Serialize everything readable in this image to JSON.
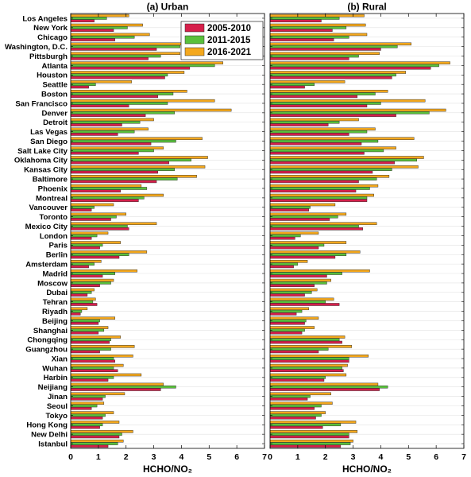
{
  "chart_data": {
    "type": "bar",
    "orientation": "horizontal",
    "categories": [
      "Los Angeles",
      "New York",
      "Chicago",
      "Washington, D.C.",
      "Pittsburgh",
      "Atlanta",
      "Houston",
      "Seattle",
      "Boston",
      "San Francisco",
      "Denver",
      "Detroit",
      "Las Vegas",
      "San Diego",
      "Salt Lake City",
      "Oklahoma City",
      "Kansas City",
      "Baltimore",
      "Phoenix",
      "Montreal",
      "Vancouver",
      "Toronto",
      "Mexico City",
      "London",
      "Paris",
      "Berlin",
      "Amsterdam",
      "Madrid",
      "Moscow",
      "Dubai",
      "Tehran",
      "Riyadh",
      "Beijing",
      "Shanghai",
      "Chongqing",
      "Guangzhou",
      "Xian",
      "Wuhan",
      "Harbin",
      "Neijiang",
      "Jinan",
      "Seoul",
      "Tokyo",
      "Hong Kong",
      "New Delhi",
      "Istanbul"
    ],
    "series": [
      {
        "name": "2005-2010",
        "color": "#d61f4b"
      },
      {
        "name": "2011-2015",
        "color": "#59c03c"
      },
      {
        "name": "2016-2021",
        "color": "#f4a81d"
      }
    ],
    "xlabel": "HCHO/NO₂",
    "xlim": [
      0,
      7
    ],
    "xticks": [
      0,
      1,
      2,
      3,
      4,
      5,
      6,
      7
    ],
    "grid": true,
    "legend_position": "top-right",
    "panels": [
      {
        "title": "(a) Urban",
        "values": [
          [
            0.85,
            1.55,
            1.6,
            3.1,
            2.8,
            4.3,
            3.4,
            0.65,
            3.15,
            2.1,
            2.7,
            1.85,
            1.7,
            2.9,
            2.45,
            3.55,
            3.15,
            3.1,
            1.8,
            2.45,
            0.75,
            1.45,
            2.1,
            0.75,
            1.05,
            1.75,
            0.65,
            1.15,
            1.05,
            0.6,
            0.95,
            0.35,
            1.0,
            1.0,
            1.4,
            1.05,
            1.6,
            1.7,
            1.35,
            3.25,
            1.15,
            0.75,
            1.15,
            1.05,
            1.75,
            1.35
          ],
          [
            1.3,
            2.05,
            2.3,
            3.95,
            3.25,
            5.2,
            3.5,
            0.9,
            3.7,
            3.5,
            3.75,
            2.5,
            2.3,
            3.8,
            3.0,
            4.35,
            3.75,
            3.85,
            2.75,
            2.65,
            0.85,
            1.65,
            2.05,
            0.95,
            1.15,
            2.1,
            0.85,
            1.6,
            1.45,
            0.75,
            0.8,
            0.4,
            1.05,
            1.2,
            1.45,
            1.45,
            1.55,
            1.55,
            1.55,
            3.8,
            1.25,
            0.95,
            1.25,
            1.15,
            1.85,
            1.7
          ],
          [
            2.1,
            2.6,
            2.85,
            4.5,
            3.95,
            5.5,
            4.1,
            2.2,
            4.2,
            5.2,
            5.8,
            3.0,
            2.8,
            4.75,
            3.35,
            4.95,
            4.85,
            4.55,
            2.55,
            3.35,
            1.55,
            2.0,
            3.1,
            1.35,
            1.8,
            2.75,
            1.1,
            2.4,
            1.55,
            0.85,
            0.9,
            0.6,
            1.6,
            1.35,
            1.8,
            2.3,
            2.25,
            1.9,
            2.55,
            3.35,
            1.95,
            1.2,
            1.55,
            1.75,
            2.25,
            1.9
          ]
        ]
      },
      {
        "title": "(b) Rural",
        "values": [
          [
            1.85,
            2.25,
            2.3,
            4.0,
            2.85,
            5.8,
            4.4,
            1.25,
            3.15,
            3.5,
            4.55,
            2.1,
            2.85,
            3.3,
            3.4,
            4.5,
            3.7,
            3.2,
            3.1,
            3.5,
            1.4,
            2.15,
            3.35,
            0.9,
            1.75,
            2.35,
            0.85,
            2.05,
            1.6,
            1.25,
            2.5,
            0.95,
            1.25,
            1.15,
            2.6,
            1.75,
            2.85,
            2.65,
            1.95,
            3.95,
            1.35,
            1.6,
            1.65,
            1.9,
            2.85,
            2.55
          ],
          [
            2.5,
            2.75,
            2.85,
            4.6,
            3.2,
            6.1,
            4.55,
            1.6,
            3.8,
            4.0,
            5.75,
            2.5,
            3.5,
            3.9,
            4.1,
            5.3,
            4.4,
            3.85,
            3.6,
            3.5,
            1.45,
            2.45,
            3.2,
            1.1,
            1.95,
            2.75,
            1.0,
            2.6,
            2.05,
            1.5,
            2.0,
            1.15,
            1.3,
            1.25,
            2.5,
            2.1,
            2.85,
            2.6,
            2.0,
            4.25,
            1.45,
            1.85,
            1.85,
            2.55,
            2.85,
            2.9
          ],
          [
            3.4,
            3.45,
            3.5,
            5.1,
            3.95,
            6.5,
            4.9,
            2.7,
            4.25,
            5.6,
            6.35,
            3.2,
            3.8,
            5.2,
            4.55,
            5.55,
            5.35,
            4.3,
            3.9,
            3.75,
            2.35,
            2.75,
            3.85,
            1.75,
            2.75,
            3.25,
            1.35,
            3.6,
            2.2,
            1.7,
            2.3,
            1.4,
            1.75,
            1.6,
            2.7,
            2.95,
            3.55,
            2.8,
            2.75,
            3.9,
            2.2,
            2.25,
            2.0,
            3.1,
            3.15,
            3.0
          ]
        ]
      }
    ]
  }
}
